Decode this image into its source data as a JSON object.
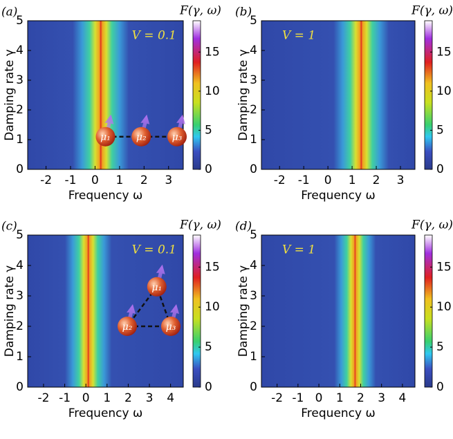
{
  "chart_data": [
    {
      "type": "heatmap",
      "panel_label": "(a)",
      "annotation": "V = 0.1",
      "xlabel": "Frequency ω",
      "ylabel": "Damping rate γ",
      "xlim": [
        -2.75,
        3.6
      ],
      "xticks": [
        -2,
        -1,
        0,
        1,
        2,
        3
      ],
      "ylim": [
        0,
        5
      ],
      "yticks": [
        0,
        1,
        2,
        3,
        4,
        5
      ],
      "colorbar": {
        "label": "F(γ, ω)",
        "lim": [
          0,
          19
        ],
        "ticks": [
          0,
          5,
          10,
          15
        ]
      },
      "spins": [
        "μ₁",
        "μ₂",
        "μ₃"
      ]
    },
    {
      "type": "heatmap",
      "panel_label": "(b)",
      "annotation": "V = 1",
      "xlabel": "Frequency ω",
      "ylabel": "Damping rate γ",
      "xlim": [
        -2.75,
        3.6
      ],
      "xticks": [
        -2,
        -1,
        0,
        1,
        2,
        3
      ],
      "ylim": [
        0,
        5
      ],
      "yticks": [
        0,
        1,
        2,
        3,
        4,
        5
      ],
      "colorbar": {
        "label": "F(γ, ω)",
        "lim": [
          0,
          19
        ],
        "ticks": [
          0,
          5,
          10,
          15
        ]
      }
    },
    {
      "type": "heatmap",
      "panel_label": "(c)",
      "annotation": "V = 0.1",
      "xlabel": "Frequency ω",
      "ylabel": "Damping rate γ",
      "xlim": [
        -2.75,
        4.6
      ],
      "xticks": [
        -2,
        -1,
        0,
        1,
        2,
        3,
        4
      ],
      "ylim": [
        0,
        5
      ],
      "yticks": [
        0,
        1,
        2,
        3,
        4,
        5
      ],
      "colorbar": {
        "label": "F(γ, ω)",
        "lim": [
          0,
          19
        ],
        "ticks": [
          0,
          5,
          10,
          15
        ]
      },
      "spins": [
        "μ₁",
        "μ₂",
        "μ₃"
      ]
    },
    {
      "type": "heatmap",
      "panel_label": "(d)",
      "annotation": "V = 1",
      "xlabel": "Frequency ω",
      "ylabel": "Damping rate γ",
      "xlim": [
        -2.75,
        4.6
      ],
      "xticks": [
        -2,
        -1,
        0,
        1,
        2,
        3,
        4
      ],
      "ylim": [
        0,
        5
      ],
      "yticks": [
        0,
        1,
        2,
        3,
        4,
        5
      ],
      "colorbar": {
        "label": "F(γ, ω)",
        "lim": [
          0,
          19
        ],
        "ticks": [
          0,
          5,
          10,
          15
        ]
      }
    }
  ]
}
